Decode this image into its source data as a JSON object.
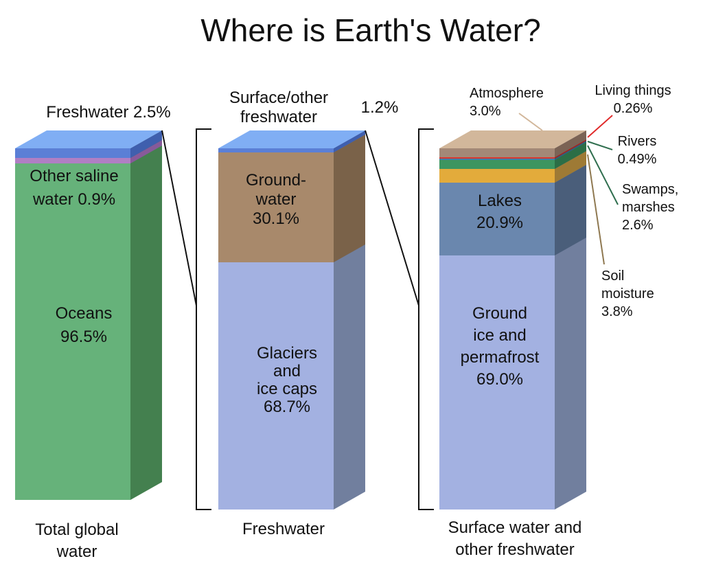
{
  "chart_data": {
    "type": "bar",
    "title": "Where is Earth's Water?",
    "stacks": [
      {
        "name": "Total global water",
        "label_lines": [
          "Total global",
          "water"
        ],
        "total": 100,
        "segments": [
          {
            "name": "Oceans",
            "value": 96.5,
            "label_lines": [
              "Oceans",
              "96.5%"
            ],
            "color": "#66b27a",
            "side_color": "#44804f"
          },
          {
            "name": "Other saline water",
            "value": 0.9,
            "label_lines": [
              "Other saline",
              "water 0.9%"
            ],
            "color": "#b07fc4",
            "side_color": "#875a9a"
          },
          {
            "name": "Freshwater",
            "value": 2.5,
            "label_lines": [
              "Freshwater 2.5%"
            ],
            "color": "#5b7fd6",
            "side_color": "#3f5fae"
          }
        ]
      },
      {
        "name": "Freshwater",
        "label_lines": [
          "Freshwater"
        ],
        "total": 100,
        "segments": [
          {
            "name": "Glaciers and ice caps",
            "value": 68.7,
            "label_lines": [
              "Glaciers",
              "and",
              "ice caps",
              "68.7%"
            ],
            "color": "#a3b1e1",
            "side_color": "#717f9e"
          },
          {
            "name": "Groundwater",
            "value": 30.1,
            "label_lines": [
              "Ground-",
              "water",
              "30.1%"
            ],
            "color": "#a8896b",
            "side_color": "#7a6249"
          },
          {
            "name": "Surface/other freshwater",
            "value": 1.2,
            "label_lines": [
              "Surface/other",
              "freshwater"
            ],
            "value_label": "1.2%",
            "color": "#5b7fd6",
            "side_color": "#3f5fae"
          }
        ]
      },
      {
        "name": "Surface water and other freshwater",
        "label_lines": [
          "Surface water and",
          "other freshwater"
        ],
        "total": 100,
        "segments": [
          {
            "name": "Ground ice and permafrost",
            "value": 69.0,
            "label_lines": [
              "Ground",
              "ice and",
              "permafrost",
              "69.0%"
            ],
            "color": "#a3b1e1",
            "side_color": "#717f9e"
          },
          {
            "name": "Lakes",
            "value": 20.9,
            "label_lines": [
              "Lakes",
              "20.9%"
            ],
            "color": "#6a87ae",
            "side_color": "#4a5e7a"
          },
          {
            "name": "Soil moisture",
            "value": 3.8,
            "label_lines": [
              "Soil",
              "moisture",
              "3.8%"
            ],
            "color": "#e3ab3b",
            "side_color": "#9e7a35",
            "leader_color": "#8e7850"
          },
          {
            "name": "Swamps, marshes",
            "value": 2.6,
            "label_lines": [
              "Swamps,",
              "marshes",
              "2.6%"
            ],
            "color": "#3c9560",
            "side_color": "#2c6e46",
            "leader_color": "#2f6e4e"
          },
          {
            "name": "Rivers",
            "value": 0.49,
            "label_lines": [
              "Rivers",
              "0.49%"
            ],
            "color": "#3e7fa8",
            "side_color": "#2d5e7d",
            "leader_color": "#2f6e4e"
          },
          {
            "name": "Living things",
            "value": 0.26,
            "label_lines": [
              "Living things",
              "0.26%"
            ],
            "color": "#d9372f",
            "side_color": "#a02620",
            "leader_color": "#e02a2a"
          },
          {
            "name": "Atmosphere",
            "value": 3.0,
            "label_lines": [
              "Atmosphere",
              "3.0%"
            ],
            "color": "#a38877",
            "side_color": "#7b6355",
            "leader_color": "#d2b79b"
          }
        ]
      }
    ]
  }
}
